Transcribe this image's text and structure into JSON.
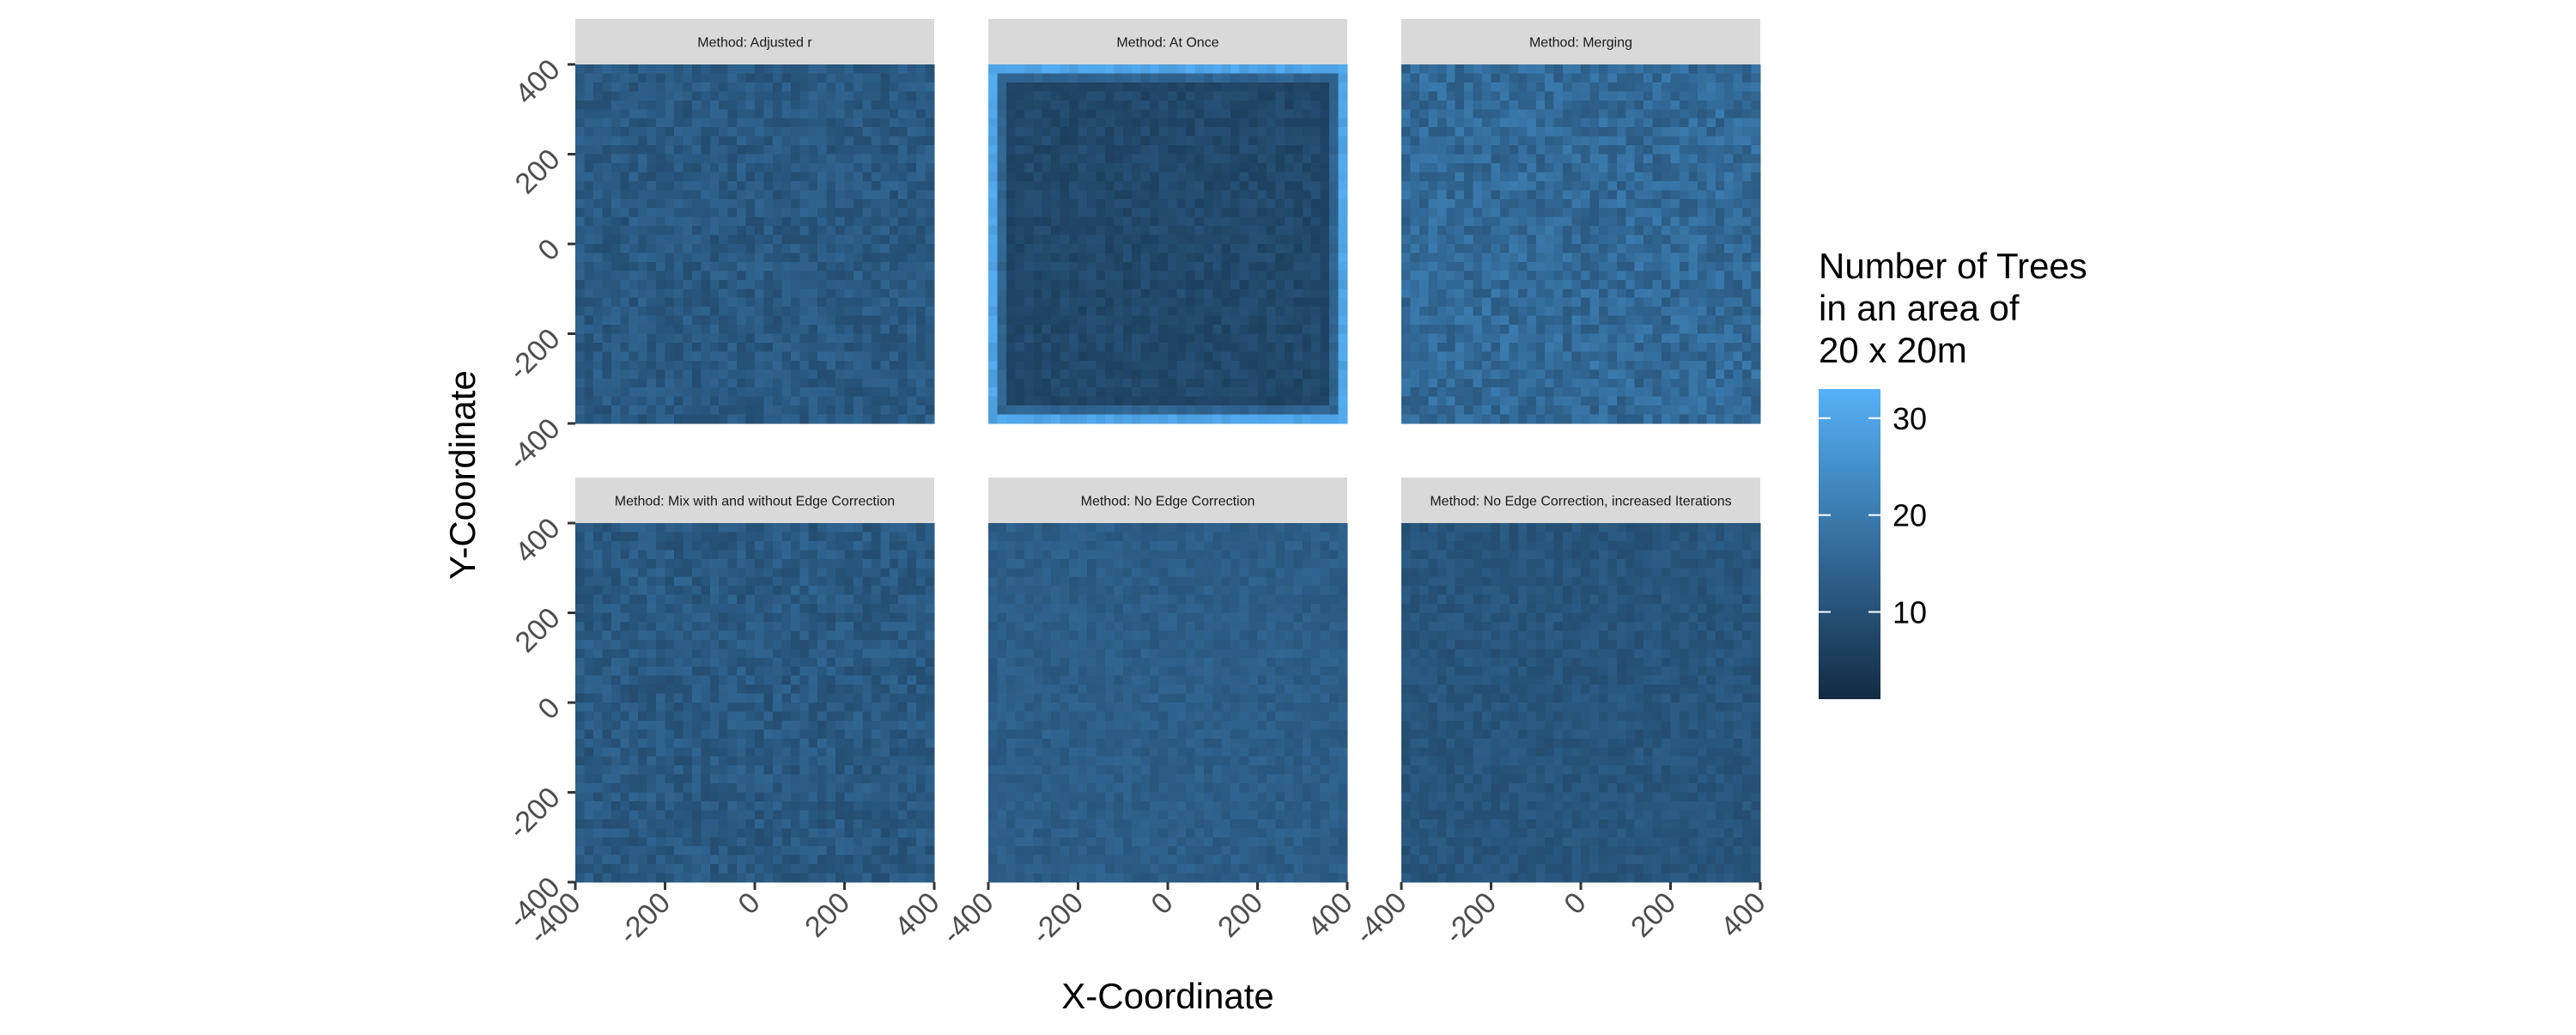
{
  "chart_data": {
    "type": "heatmap",
    "xlabel": "X-Coordinate",
    "ylabel": "Y-Coordinate",
    "xlim": [
      -400,
      400
    ],
    "ylim": [
      -400,
      400
    ],
    "x_ticks": [
      "-400",
      "-200",
      "0",
      "200",
      "400"
    ],
    "y_ticks": [
      "-400",
      "-200",
      "0",
      "200",
      "400"
    ],
    "cell_size_m": 20,
    "legend": {
      "title_lines": [
        "Number of Trees",
        "in an area of",
        "20 x 20m"
      ],
      "ticks": [
        {
          "value": 10,
          "label": "10"
        },
        {
          "value": 20,
          "label": "20"
        },
        {
          "value": 30,
          "label": "30"
        }
      ],
      "min": 1,
      "max": 33,
      "color_low": "#132B43",
      "color_high": "#56B1F7",
      "position": "right"
    },
    "panels": [
      {
        "title": "Method: Adjusted r",
        "mean_count": 12,
        "variation": 3,
        "edge_effect": "none"
      },
      {
        "title": "Method: At Once",
        "mean_count": 8,
        "variation": 2,
        "edge_effect": "high counts along outer border"
      },
      {
        "title": "Method: Merging",
        "mean_count": 16,
        "variation": 4,
        "edge_effect": "none"
      },
      {
        "title": "Method: Mix with and without Edge Correction",
        "mean_count": 12,
        "variation": 3,
        "edge_effect": "none"
      },
      {
        "title": "Method: No Edge Correction",
        "mean_count": 13,
        "variation": 2,
        "edge_effect": "none"
      },
      {
        "title": "Method: No Edge Correction, increased Iterations",
        "mean_count": 11,
        "variation": 2,
        "edge_effect": "none"
      }
    ],
    "grid": false,
    "background": "#ffffff",
    "strip_color": "#D9D9D9"
  }
}
